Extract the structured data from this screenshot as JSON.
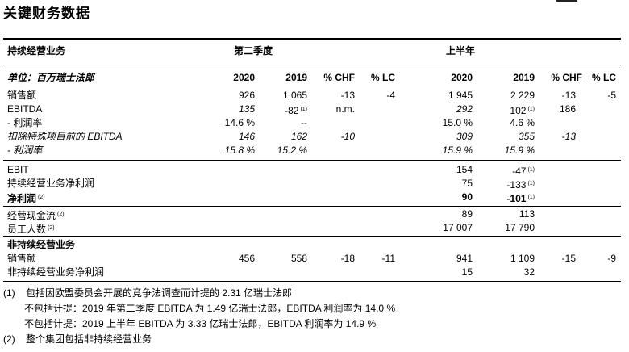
{
  "title": "关键财务数据",
  "header": {
    "section": "持续经营业务",
    "q2": "第二季度",
    "h1": "上半年",
    "unit": "单位：百万瑞士法郎",
    "col_2020": "2020",
    "col_2019": "2019",
    "col_chf": "% CHF",
    "col_lc": "% LC",
    "col_2020b": "2020",
    "col_2019b": "2019",
    "col_chfb": "% CHF",
    "col_lcb": "% LC"
  },
  "rows": [
    {
      "label": "销售额",
      "q20": "926",
      "q19": "1 065",
      "qchf": "-13",
      "qlc": "-4",
      "h20": "1 945",
      "h19": "2 229",
      "hchf": "-13",
      "hlc": "-5"
    },
    {
      "label": "EBITDA",
      "q20": "135",
      "q19": "-82",
      "q19sup": "(1)",
      "qchf": "n.m.",
      "qlc": "",
      "h20": "292",
      "h19": "102",
      "h19sup": "(1)",
      "hchf": "186",
      "hlc": ""
    },
    {
      "label": "- 利润率",
      "q20": "14.6 %",
      "q19": "--",
      "qchf": "",
      "qlc": "",
      "h20": "15.0 %",
      "h19": "4.6 %",
      "hchf": "",
      "hlc": ""
    },
    {
      "label": "扣除特殊项目前的 EBITDA",
      "q20": "146",
      "q19": "162",
      "qchf": "-10",
      "qlc": "",
      "h20": "309",
      "h19": "355",
      "hchf": "-13",
      "hlc": ""
    },
    {
      "label": "- 利润率",
      "q20": "15.8 %",
      "q19": "15.2 %",
      "qchf": "",
      "qlc": "",
      "h20": "15.9 %",
      "h19": "15.9 %",
      "hchf": "",
      "hlc": ""
    },
    {
      "label": "EBIT",
      "h20": "154",
      "h19": "-47",
      "h19sup": "(1)"
    },
    {
      "label": "持续经营业务净利润",
      "h20": "75",
      "h19": "-133",
      "h19sup": "(1)"
    },
    {
      "label": "净利润",
      "labelsup": "(2)",
      "h20": "90",
      "h19": "-101",
      "h19sup": "(1)"
    },
    {
      "label": "经营现金流",
      "labelsup": "(2)",
      "h20": "89",
      "h19": "113"
    },
    {
      "label": "员工人数",
      "labelsup": "(2)",
      "h20": "17 007",
      "h19": "17 790"
    },
    {
      "label": "非持续经营业务"
    },
    {
      "label": "销售额",
      "q20": "456",
      "q19": "558",
      "qchf": "-18",
      "qlc": "-11",
      "h20": "941",
      "h19": "1 109",
      "hchf": "-15",
      "hlc": "-9"
    },
    {
      "label": "非持续经营业务净利润",
      "h20": "15",
      "h19": "32"
    }
  ],
  "footnotes": {
    "n1_mark": "(1)",
    "n1_text": "包括因欧盟委员会开展的竞争法调查而计提的 2.31 亿瑞士法郎",
    "n1_line2": "不包括计提：2019 年第二季度 EBITDA 为 1.49 亿瑞士法郎，EBITDA 利润率为 14.0 %",
    "n1_line3": "不包括计提：2019 上半年 EBITDA 为 3.33 亿瑞士法郎，EBITDA 利润率为 14.9 %",
    "n2_mark": "(2)",
    "n2_text": "整个集团包括非持续经营业务"
  }
}
